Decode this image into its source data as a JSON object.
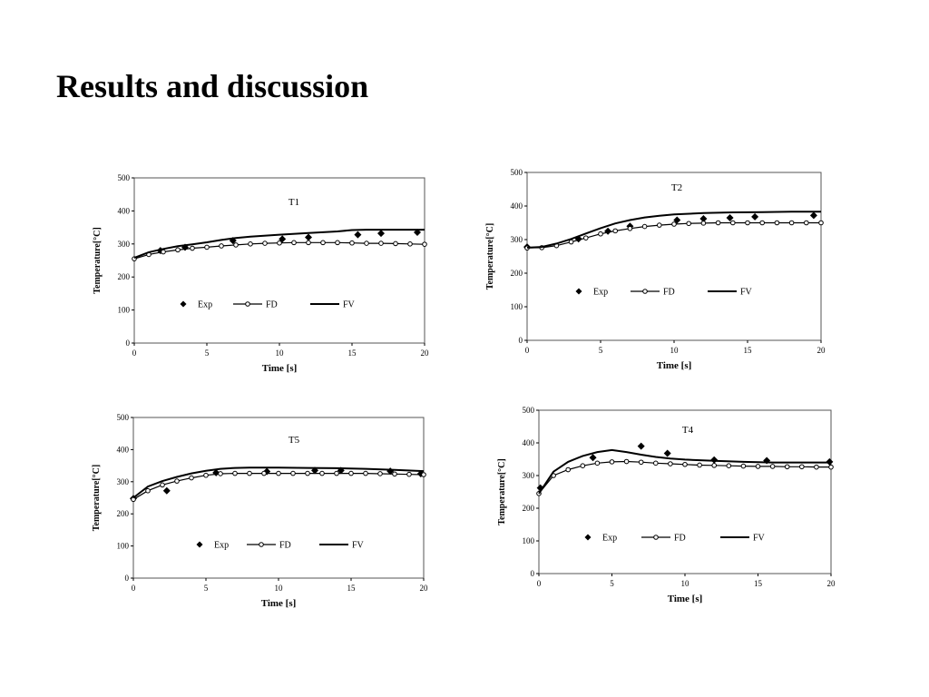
{
  "slide": {
    "title": "Results and discussion"
  },
  "chart_data": [
    {
      "type": "line",
      "id": "t1",
      "title": "T1",
      "xlabel": "Time [s]",
      "ylabel": "Temperature[°C]",
      "xlim": [
        0,
        20
      ],
      "ylim": [
        0,
        500
      ],
      "xticks": [
        0,
        5,
        10,
        15,
        20
      ],
      "yticks": [
        0,
        100,
        200,
        300,
        400,
        500
      ],
      "legend": [
        "Exp",
        "FD",
        "FV"
      ],
      "legend_position": "bottom",
      "grid": false,
      "series": [
        {
          "name": "Exp",
          "style": "markers-diamond",
          "x": [
            1.8,
            3.5,
            6.8,
            10.2,
            12,
            15.4,
            17,
            19.5
          ],
          "y": [
            280,
            290,
            310,
            315,
            320,
            328,
            332,
            335
          ]
        },
        {
          "name": "FD",
          "style": "line-markers",
          "x": [
            0,
            1,
            2,
            3,
            4,
            5,
            6,
            7,
            8,
            9,
            10,
            11,
            12,
            13,
            14,
            15,
            16,
            17,
            18,
            19,
            20
          ],
          "y": [
            255,
            268,
            276,
            282,
            287,
            290,
            294,
            297,
            300,
            302,
            303,
            304,
            304,
            304,
            304,
            303,
            302,
            302,
            301,
            300,
            299
          ]
        },
        {
          "name": "FV",
          "style": "line",
          "x": [
            0,
            1,
            2,
            3,
            4,
            5,
            6,
            7,
            8,
            10,
            12,
            14,
            15,
            16,
            18,
            20
          ],
          "y": [
            258,
            275,
            285,
            293,
            299,
            305,
            312,
            318,
            322,
            328,
            333,
            338,
            342,
            343,
            343,
            343
          ]
        }
      ]
    },
    {
      "type": "line",
      "id": "t2",
      "title": "T2",
      "xlabel": "Time [s]",
      "ylabel": "Temperature[°C]",
      "xlim": [
        0,
        20
      ],
      "ylim": [
        0,
        500
      ],
      "xticks": [
        0,
        5,
        10,
        15,
        20
      ],
      "yticks": [
        0,
        100,
        200,
        300,
        400,
        500
      ],
      "legend": [
        "Exp",
        "FD",
        "FV"
      ],
      "legend_position": "bottom",
      "grid": false,
      "series": [
        {
          "name": "Exp",
          "style": "markers-diamond",
          "x": [
            0,
            3.5,
            5.5,
            7,
            10.2,
            12,
            13.8,
            15.5,
            19.5
          ],
          "y": [
            278,
            302,
            325,
            340,
            358,
            362,
            365,
            368,
            372
          ]
        },
        {
          "name": "FD",
          "style": "line-markers",
          "x": [
            0,
            1,
            2,
            3,
            4,
            5,
            6,
            7,
            8,
            9,
            10,
            11,
            12,
            13,
            14,
            15,
            16,
            17,
            18,
            19,
            20
          ],
          "y": [
            275,
            276,
            282,
            293,
            305,
            317,
            326,
            333,
            339,
            343,
            346,
            348,
            349,
            350,
            350,
            350,
            350,
            350,
            350,
            350,
            350
          ]
        },
        {
          "name": "FV",
          "style": "line",
          "x": [
            0,
            1,
            2,
            3,
            4,
            5,
            6,
            7,
            8,
            9,
            10,
            12,
            14,
            16,
            18,
            20
          ],
          "y": [
            276,
            278,
            288,
            302,
            318,
            334,
            348,
            358,
            366,
            371,
            375,
            379,
            381,
            382,
            383,
            383
          ]
        }
      ]
    },
    {
      "type": "line",
      "id": "t5",
      "title": "T5",
      "xlabel": "Time [s]",
      "ylabel": "Temperature[°C]",
      "xlim": [
        0,
        20
      ],
      "ylim": [
        0,
        500
      ],
      "xticks": [
        0,
        5,
        10,
        15,
        20
      ],
      "yticks": [
        0,
        100,
        200,
        300,
        400,
        500
      ],
      "legend": [
        "Exp",
        "FD",
        "FV"
      ],
      "legend_position": "bottom",
      "grid": false,
      "series": [
        {
          "name": "Exp",
          "style": "markers-diamond",
          "x": [
            0,
            2.3,
            5.7,
            9.2,
            12.5,
            14.3,
            17.7,
            19.8
          ],
          "y": [
            248,
            272,
            328,
            332,
            335,
            335,
            333,
            325
          ]
        },
        {
          "name": "FD",
          "style": "line-markers",
          "x": [
            0,
            1,
            2,
            3,
            4,
            5,
            6,
            7,
            8,
            9,
            10,
            11,
            12,
            13,
            14,
            15,
            16,
            17,
            18,
            19,
            20
          ],
          "y": [
            245,
            272,
            290,
            302,
            312,
            320,
            325,
            326,
            326,
            326,
            326,
            326,
            326,
            326,
            326,
            326,
            326,
            325,
            324,
            323,
            322
          ]
        },
        {
          "name": "FV",
          "style": "line",
          "x": [
            0,
            1,
            2,
            3,
            4,
            5,
            6,
            7,
            8,
            10,
            12,
            14,
            16,
            18,
            20
          ],
          "y": [
            250,
            285,
            302,
            315,
            326,
            334,
            340,
            343,
            344,
            344,
            343,
            342,
            340,
            337,
            333
          ]
        }
      ]
    },
    {
      "type": "line",
      "id": "t4",
      "title": "T4",
      "xlabel": "Time [s]",
      "ylabel": "Temperature[°C]",
      "xlim": [
        0,
        20
      ],
      "ylim": [
        0,
        500
      ],
      "xticks": [
        0,
        5,
        10,
        15,
        20
      ],
      "yticks": [
        0,
        100,
        200,
        300,
        400,
        500
      ],
      "legend": [
        "Exp",
        "FD",
        "FV"
      ],
      "legend_position": "bottom",
      "grid": false,
      "series": [
        {
          "name": "Exp",
          "style": "markers-diamond",
          "x": [
            0.1,
            3.7,
            7,
            8.8,
            12,
            15.6,
            19.9
          ],
          "y": [
            262,
            355,
            390,
            368,
            348,
            346,
            342
          ]
        },
        {
          "name": "FD",
          "style": "line-markers",
          "x": [
            0,
            1,
            2,
            3,
            4,
            5,
            6,
            7,
            8,
            9,
            10,
            11,
            12,
            13,
            14,
            15,
            16,
            17,
            18,
            19,
            20
          ],
          "y": [
            245,
            300,
            318,
            330,
            338,
            342,
            343,
            341,
            338,
            336,
            334,
            332,
            331,
            330,
            329,
            328,
            328,
            327,
            327,
            326,
            326
          ]
        },
        {
          "name": "FV",
          "style": "line",
          "x": [
            0,
            1,
            2,
            3,
            4,
            5,
            6,
            7,
            8,
            9,
            10,
            12,
            14,
            16,
            18,
            20
          ],
          "y": [
            245,
            312,
            342,
            360,
            372,
            378,
            372,
            364,
            357,
            352,
            349,
            345,
            342,
            340,
            340,
            340
          ]
        }
      ]
    }
  ]
}
